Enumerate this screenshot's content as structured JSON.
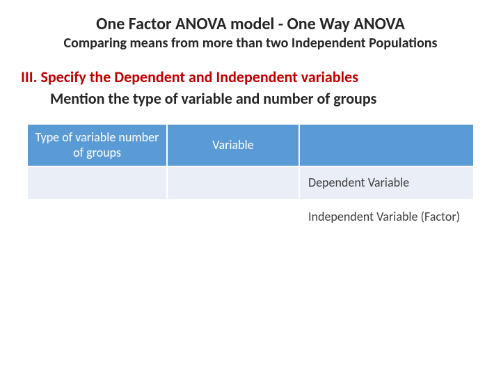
{
  "title": {
    "main": "One Factor ANOVA model - One Way ANOVA",
    "sub": "Comparing means from more than two Independent Populations"
  },
  "section": {
    "line1": "III. Specify the Dependent and Independent variables",
    "line2": "Mention the type of variable and number of groups"
  },
  "table": {
    "headers": {
      "c0": "Type of variable number of groups",
      "c1": "Variable",
      "c2": ""
    },
    "rows": [
      {
        "c0": "",
        "c1": "",
        "c2": "Dependent Variable"
      },
      {
        "c0": "",
        "c1": "",
        "c2": "Independent Variable (Factor)"
      }
    ]
  },
  "colors": {
    "header_bg": "#5b9bd5",
    "header_fg": "#ffffff",
    "row_alt_bg": "#eaeff7",
    "accent_red": "#c00000",
    "text_dark": "#262626"
  }
}
